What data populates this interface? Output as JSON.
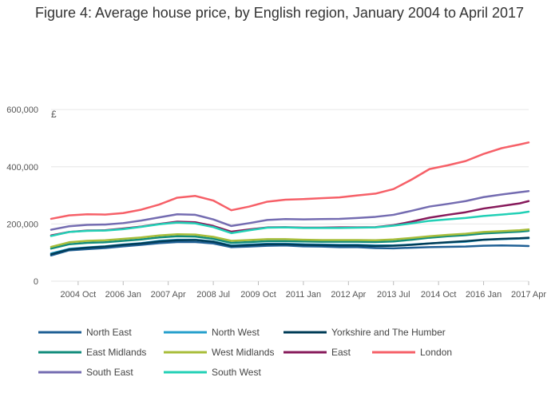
{
  "chart_data": {
    "type": "line",
    "title": "Figure 4: Average house price, by English region, January 2004 to April 2017",
    "ylabel": "£",
    "xlabel": "",
    "ylim": [
      0,
      620000
    ],
    "xlim": [
      2004.0,
      2017.25
    ],
    "y_ticks": [
      {
        "value": 0,
        "label": "0"
      },
      {
        "value": 200000,
        "label": "200,000"
      },
      {
        "value": 400000,
        "label": "400,000"
      },
      {
        "value": 600000,
        "label": "600,000"
      }
    ],
    "x_ticks": [
      {
        "value": 2004.75,
        "label": "2004 Oct"
      },
      {
        "value": 2006.0,
        "label": "2006 Jan"
      },
      {
        "value": 2007.25,
        "label": "2007 Apr"
      },
      {
        "value": 2008.5,
        "label": "2008 Jul"
      },
      {
        "value": 2009.75,
        "label": "2009 Oct"
      },
      {
        "value": 2011.0,
        "label": "2011 Jan"
      },
      {
        "value": 2012.25,
        "label": "2012 Apr"
      },
      {
        "value": 2013.5,
        "label": "2013 Jul"
      },
      {
        "value": 2014.75,
        "label": "2014 Oct"
      },
      {
        "value": 2016.0,
        "label": "2016 Jan"
      },
      {
        "value": 2017.25,
        "label": "2017 Apr"
      }
    ],
    "grid": "horizontal",
    "legend_position": "bottom",
    "x": [
      2004.0,
      2004.5,
      2005.0,
      2005.5,
      2006.0,
      2006.5,
      2007.0,
      2007.5,
      2008.0,
      2008.5,
      2009.0,
      2009.5,
      2010.0,
      2010.5,
      2011.0,
      2011.5,
      2012.0,
      2012.5,
      2013.0,
      2013.5,
      2014.0,
      2014.5,
      2015.0,
      2015.5,
      2016.0,
      2016.5,
      2017.0,
      2017.25
    ],
    "series": [
      {
        "name": "North East",
        "color": "#206095",
        "values": [
          90000,
          108000,
          112000,
          116000,
          122000,
          127000,
          133000,
          137000,
          137000,
          132000,
          119000,
          121000,
          124000,
          125000,
          122000,
          121000,
          119000,
          119000,
          116000,
          115000,
          117000,
          119000,
          120000,
          121000,
          124000,
          125000,
          124000,
          123000
        ]
      },
      {
        "name": "North West",
        "color": "#27a0cc",
        "values": [
          97000,
          113000,
          118000,
          122000,
          128000,
          133000,
          141000,
          145000,
          145000,
          139000,
          125000,
          128000,
          131000,
          131000,
          129000,
          128000,
          127000,
          127000,
          125000,
          125000,
          128000,
          132000,
          135000,
          138000,
          145000,
          147000,
          149000,
          150000
        ]
      },
      {
        "name": "Yorkshire and The Humber",
        "color": "#003c57",
        "values": [
          94000,
          111000,
          117000,
          121000,
          127000,
          132000,
          139000,
          143000,
          144000,
          138000,
          123000,
          126000,
          129000,
          129000,
          127000,
          126000,
          125000,
          125000,
          123000,
          124000,
          127000,
          132000,
          136000,
          140000,
          145000,
          148000,
          150000,
          152000
        ]
      },
      {
        "name": "East Midlands",
        "color": "#118c7b",
        "values": [
          114000,
          129000,
          134000,
          136000,
          141000,
          146000,
          153000,
          157000,
          156000,
          148000,
          134000,
          137000,
          140000,
          140000,
          139000,
          138000,
          138000,
          138000,
          137000,
          139000,
          145000,
          152000,
          157000,
          161000,
          167000,
          170000,
          173000,
          176000
        ]
      },
      {
        "name": "West Midlands",
        "color": "#a8bd3a",
        "values": [
          120000,
          136000,
          141000,
          143000,
          148000,
          153000,
          160000,
          164000,
          163000,
          155000,
          141000,
          144000,
          147000,
          147000,
          145000,
          144000,
          144000,
          144000,
          143000,
          146000,
          151000,
          157000,
          162000,
          166000,
          172000,
          175000,
          178000,
          181000
        ]
      },
      {
        "name": "East",
        "color": "#871a5b",
        "values": [
          160000,
          172000,
          177000,
          178000,
          184000,
          191000,
          200000,
          208000,
          206000,
          193000,
          173000,
          181000,
          188000,
          189000,
          187000,
          187000,
          188000,
          188000,
          189000,
          196000,
          208000,
          222000,
          232000,
          241000,
          254000,
          263000,
          272000,
          280000
        ]
      },
      {
        "name": "London",
        "color": "#f66068",
        "values": [
          218000,
          230000,
          234000,
          233000,
          238000,
          250000,
          268000,
          292000,
          298000,
          282000,
          248000,
          261000,
          278000,
          285000,
          287000,
          290000,
          293000,
          300000,
          306000,
          322000,
          355000,
          392000,
          405000,
          420000,
          445000,
          465000,
          478000,
          485000
        ]
      },
      {
        "name": "South East",
        "color": "#746cb1",
        "values": [
          180000,
          192000,
          197000,
          198000,
          203000,
          212000,
          223000,
          234000,
          232000,
          216000,
          193000,
          203000,
          214000,
          217000,
          216000,
          217000,
          218000,
          221000,
          225000,
          232000,
          246000,
          261000,
          270000,
          280000,
          294000,
          303000,
          311000,
          315000
        ]
      },
      {
        "name": "South West",
        "color": "#22d0b6",
        "values": [
          158000,
          172000,
          176000,
          177000,
          182000,
          190000,
          199000,
          205000,
          202000,
          189000,
          168000,
          178000,
          187000,
          188000,
          186000,
          186000,
          186000,
          187000,
          188000,
          194000,
          202000,
          211000,
          216000,
          221000,
          228000,
          233000,
          238000,
          243000
        ]
      }
    ]
  }
}
